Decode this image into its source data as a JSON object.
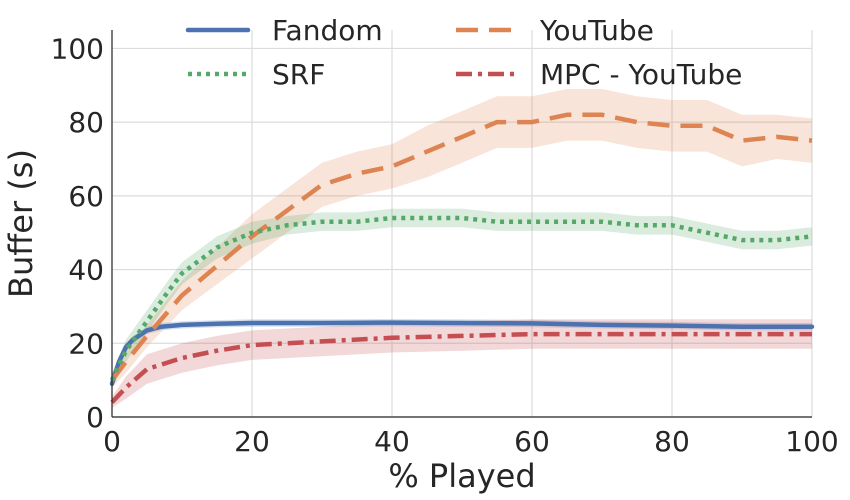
{
  "chart_data": {
    "type": "line",
    "xlabel": "% Played",
    "ylabel": "Buffer (s)",
    "xlim": [
      0,
      100
    ],
    "ylim": [
      0,
      105
    ],
    "xticks": [
      0,
      20,
      40,
      60,
      80,
      100
    ],
    "yticks": [
      0,
      20,
      40,
      60,
      80,
      100
    ],
    "grid": true,
    "legend_position": "top",
    "legend_columns": 2,
    "series": [
      {
        "name": "Fandom",
        "style": "solid",
        "color": "#4c72b0",
        "x": [
          0,
          1,
          2,
          3,
          5,
          7,
          10,
          15,
          20,
          30,
          40,
          50,
          60,
          70,
          80,
          90,
          100
        ],
        "y": [
          9,
          15,
          19,
          21,
          23.5,
          24.5,
          25,
          25.3,
          25.5,
          25.5,
          25.6,
          25.5,
          25.4,
          25,
          24.8,
          24.5,
          24.5
        ],
        "band": [
          1,
          1,
          1,
          1,
          1,
          1,
          1,
          1,
          1,
          1,
          1,
          1,
          1,
          1,
          1,
          1,
          1
        ]
      },
      {
        "name": "YouTube",
        "style": "dashed",
        "color": "#dd8452",
        "x": [
          0,
          2,
          5,
          10,
          15,
          20,
          25,
          30,
          35,
          40,
          45,
          50,
          55,
          60,
          65,
          70,
          75,
          80,
          85,
          90,
          95,
          100
        ],
        "y": [
          10,
          15,
          22,
          33,
          41,
          49,
          56,
          63,
          66,
          68,
          72,
          76,
          80,
          80,
          82,
          82,
          80,
          79,
          79,
          75,
          76,
          75
        ],
        "band": [
          2,
          3,
          3,
          4,
          5,
          6,
          6,
          6,
          6,
          6,
          7,
          7,
          7,
          7,
          7,
          7,
          7,
          7,
          7,
          7,
          6,
          6
        ]
      },
      {
        "name": "SRF",
        "style": "dotted",
        "color": "#55a868",
        "x": [
          0,
          2,
          5,
          8,
          10,
          15,
          20,
          25,
          30,
          35,
          40,
          45,
          50,
          55,
          60,
          65,
          70,
          75,
          80,
          85,
          90,
          95,
          100
        ],
        "y": [
          10,
          18,
          26,
          34,
          39,
          46,
          50,
          52,
          53,
          53,
          54,
          54,
          54,
          53,
          53,
          53,
          53,
          52,
          52,
          50,
          48,
          48,
          49
        ],
        "band": [
          2,
          3,
          3,
          3,
          3,
          3,
          3,
          2.5,
          2.5,
          2.5,
          2.5,
          2.5,
          2.5,
          2.5,
          2.5,
          2.5,
          2.5,
          2.5,
          2.5,
          2.5,
          2.5,
          2.5,
          2.5
        ]
      },
      {
        "name": "MPC - YouTube",
        "style": "dashdot",
        "color": "#c44e52",
        "x": [
          0,
          2,
          5,
          10,
          15,
          20,
          30,
          40,
          50,
          60,
          70,
          80,
          90,
          100
        ],
        "y": [
          4,
          8,
          13,
          16,
          18,
          19.5,
          20.5,
          21.5,
          22,
          22.5,
          22.5,
          22.5,
          22.5,
          22.5
        ],
        "band": [
          1.5,
          3,
          4,
          4,
          4,
          4,
          4,
          4,
          4,
          4,
          4,
          4,
          4,
          4
        ]
      }
    ]
  }
}
